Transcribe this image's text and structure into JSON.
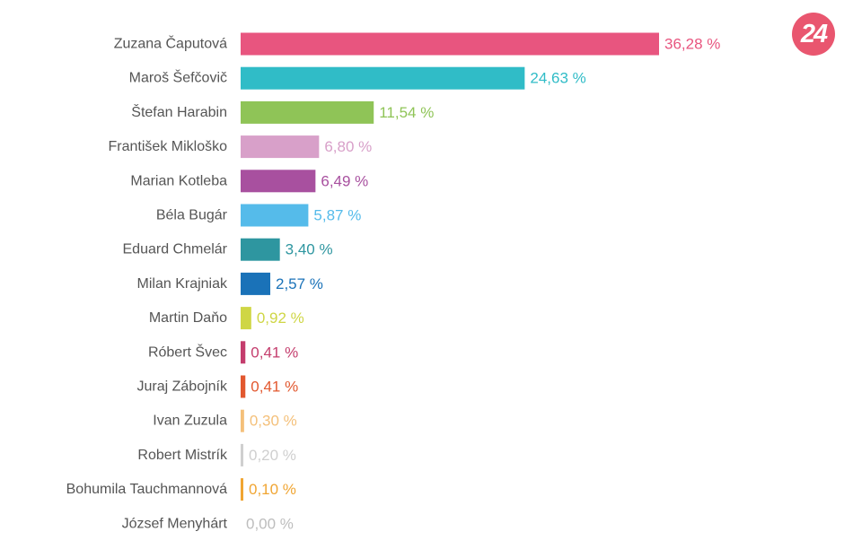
{
  "logo": {
    "text": "24",
    "color": "#e9566f"
  },
  "chart_data": {
    "type": "bar",
    "orientation": "horizontal",
    "unit": "%",
    "categories": [
      "Zuzana Čaputová",
      "Maroš Šefčovič",
      "Štefan Harabin",
      "František Mikloško",
      "Marian Kotleba",
      "Béla Bugár",
      "Eduard Chmelár",
      "Milan Krajniak",
      "Martin Daňo",
      "Róbert Švec",
      "Juraj Zábojník",
      "Ivan Zuzula",
      "Robert Mistrík",
      "Bohumila Tauchmannová",
      "József Menyhárt"
    ],
    "values": [
      36.28,
      24.63,
      11.54,
      6.8,
      6.49,
      5.87,
      3.4,
      2.57,
      0.92,
      0.41,
      0.41,
      0.3,
      0.2,
      0.1,
      0.0
    ],
    "value_labels": [
      "36,28 %",
      "24,63 %",
      "11,54 %",
      "6,80 %",
      "6,49 %",
      "5,87 %",
      "3,40 %",
      "2,57 %",
      "0,92 %",
      "0,41 %",
      "0,41 %",
      "0,30 %",
      "0,20 %",
      "0,10 %",
      "0,00 %"
    ],
    "colors": [
      "#e8557f",
      "#30bcc7",
      "#8fc457",
      "#d8a0c9",
      "#a8509f",
      "#55bbea",
      "#2e96a0",
      "#1a72b8",
      "#cfd645",
      "#c43d6d",
      "#e2582f",
      "#f4c07a",
      "#cfcfcf",
      "#f0a532",
      "#bdbdbd"
    ],
    "xlim": [
      0,
      36.28
    ],
    "grid": false,
    "legend": "none"
  }
}
